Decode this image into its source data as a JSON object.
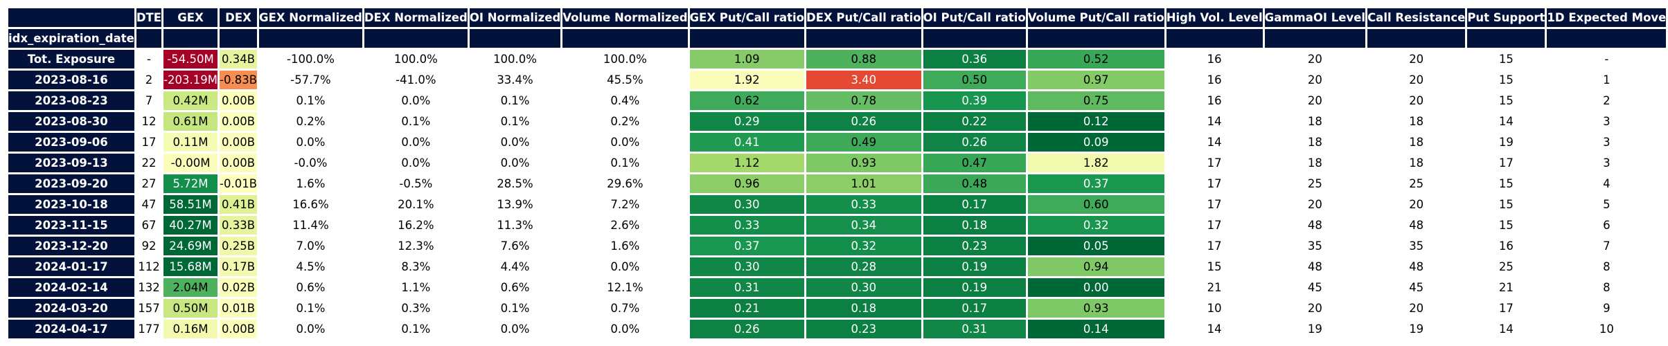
{
  "chart_data": {
    "type": "table",
    "columns": [
      "DTE",
      "GEX",
      "DEX",
      "GEX Normalized",
      "DEX Normalized",
      "OI Normalized",
      "Volume Normalized",
      "GEX Put/Call ratio",
      "DEX Put/Call ratio",
      "OI Put/Call ratio",
      "Volume Put/Call ratio",
      "High Vol. Level",
      "GammaOI Level",
      "Call Resistance",
      "Put Support",
      "1D Expected Move"
    ],
    "index_name": "idx_expiration_date",
    "rows": [
      {
        "label": "Tot. Exposure",
        "cells": [
          "-",
          "-54.50M",
          "0.34B",
          "-100.0%",
          "100.0%",
          "100.0%",
          "100.0%",
          "1.09",
          "0.88",
          "0.36",
          "0.52",
          "16",
          "20",
          "20",
          "15",
          "-"
        ],
        "bg": [
          "#ffffff",
          "#a50026",
          "#e6f59d",
          "#ffffff",
          "#ffffff",
          "#ffffff",
          "#ffffff",
          "#86cb67",
          "#4eb15d",
          "#0c7f43",
          "#39a758",
          "#ffffff",
          "#ffffff",
          "#ffffff",
          "#ffffff",
          "#ffffff"
        ]
      },
      {
        "label": "2023-08-16",
        "cells": [
          "2",
          "-203.19M",
          "-0.83B",
          "-57.7%",
          "-41.0%",
          "33.4%",
          "45.5%",
          "1.92",
          "3.40",
          "0.50",
          "0.97",
          "16",
          "20",
          "20",
          "15",
          "1"
        ],
        "bg": [
          "#ffffff",
          "#a50026",
          "#f88d52",
          "#ffffff",
          "#ffffff",
          "#ffffff",
          "#ffffff",
          "#fbfdba",
          "#e34933",
          "#3faa59",
          "#84ca66",
          "#ffffff",
          "#ffffff",
          "#ffffff",
          "#ffffff",
          "#ffffff"
        ]
      },
      {
        "label": "2023-08-23",
        "cells": [
          "7",
          "0.42M",
          "0.00B",
          "0.1%",
          "0.0%",
          "0.1%",
          "0.4%",
          "0.62",
          "0.78",
          "0.39",
          "0.75",
          "16",
          "20",
          "20",
          "15",
          "2"
        ],
        "bg": [
          "#ffffff",
          "#cbe982",
          "#fbfdba",
          "#ffffff",
          "#ffffff",
          "#ffffff",
          "#ffffff",
          "#3faa59",
          "#66bd63",
          "#18954f",
          "#5fba5f",
          "#ffffff",
          "#ffffff",
          "#ffffff",
          "#ffffff",
          "#ffffff"
        ]
      },
      {
        "label": "2023-08-30",
        "cells": [
          "12",
          "0.61M",
          "0.00B",
          "0.2%",
          "0.1%",
          "0.1%",
          "0.2%",
          "0.29",
          "0.26",
          "0.22",
          "0.12",
          "14",
          "18",
          "18",
          "14",
          "3"
        ],
        "bg": [
          "#ffffff",
          "#c6e77f",
          "#fbfdba",
          "#ffffff",
          "#ffffff",
          "#ffffff",
          "#ffffff",
          "#108647",
          "#0e8245",
          "#0c7f43",
          "#006837",
          "#ffffff",
          "#ffffff",
          "#ffffff",
          "#ffffff",
          "#ffffff"
        ]
      },
      {
        "label": "2023-09-06",
        "cells": [
          "17",
          "0.11M",
          "0.00B",
          "0.0%",
          "0.0%",
          "0.0%",
          "0.0%",
          "0.41",
          "0.49",
          "0.26",
          "0.09",
          "14",
          "18",
          "18",
          "19",
          "3"
        ],
        "bg": [
          "#ffffff",
          "#f5fbb2",
          "#fbfdba",
          "#ffffff",
          "#ffffff",
          "#ffffff",
          "#ffffff",
          "#1e9a51",
          "#3ea959",
          "#0f8446",
          "#006837",
          "#ffffff",
          "#ffffff",
          "#ffffff",
          "#ffffff",
          "#ffffff"
        ]
      },
      {
        "label": "2023-09-13",
        "cells": [
          "22",
          "-0.00M",
          "0.00B",
          "-0.0%",
          "0.0%",
          "0.0%",
          "0.1%",
          "1.12",
          "0.93",
          "0.47",
          "1.82",
          "17",
          "18",
          "18",
          "17",
          "3"
        ],
        "bg": [
          "#ffffff",
          "#fbfdba",
          "#fbfdba",
          "#ffffff",
          "#ffffff",
          "#ffffff",
          "#ffffff",
          "#a5d86a",
          "#7fc866",
          "#39a758",
          "#f1f9ac",
          "#ffffff",
          "#ffffff",
          "#ffffff",
          "#ffffff",
          "#ffffff"
        ]
      },
      {
        "label": "2023-09-20",
        "cells": [
          "27",
          "5.72M",
          "-0.01B",
          "1.6%",
          "-0.5%",
          "28.5%",
          "29.6%",
          "0.96",
          "1.01",
          "0.48",
          "0.37",
          "17",
          "25",
          "25",
          "15",
          "4"
        ],
        "bg": [
          "#ffffff",
          "#148e4b",
          "#fefebd",
          "#ffffff",
          "#ffffff",
          "#ffffff",
          "#ffffff",
          "#8ccd67",
          "#8ccd67",
          "#3ba858",
          "#1a9850",
          "#ffffff",
          "#ffffff",
          "#ffffff",
          "#ffffff",
          "#ffffff"
        ]
      },
      {
        "label": "2023-10-18",
        "cells": [
          "47",
          "58.51M",
          "0.41B",
          "16.6%",
          "20.1%",
          "13.9%",
          "7.2%",
          "0.30",
          "0.33",
          "0.17",
          "0.60",
          "17",
          "20",
          "20",
          "15",
          "5"
        ],
        "bg": [
          "#ffffff",
          "#006837",
          "#dff293",
          "#ffffff",
          "#ffffff",
          "#ffffff",
          "#ffffff",
          "#108647",
          "#148e4b",
          "#0c7f43",
          "#3faa59",
          "#ffffff",
          "#ffffff",
          "#ffffff",
          "#ffffff",
          "#ffffff"
        ]
      },
      {
        "label": "2023-11-15",
        "cells": [
          "67",
          "40.27M",
          "0.33B",
          "11.4%",
          "16.2%",
          "11.3%",
          "2.6%",
          "0.33",
          "0.34",
          "0.18",
          "0.32",
          "17",
          "48",
          "48",
          "15",
          "6"
        ],
        "bg": [
          "#ffffff",
          "#006837",
          "#e6f59d",
          "#ffffff",
          "#ffffff",
          "#ffffff",
          "#ffffff",
          "#148e4b",
          "#168f4c",
          "#0c7f43",
          "#18954f",
          "#ffffff",
          "#ffffff",
          "#ffffff",
          "#ffffff",
          "#ffffff"
        ]
      },
      {
        "label": "2023-12-20",
        "cells": [
          "92",
          "24.69M",
          "0.25B",
          "7.0%",
          "12.3%",
          "7.6%",
          "1.6%",
          "0.37",
          "0.32",
          "0.23",
          "0.05",
          "17",
          "35",
          "35",
          "16",
          "7"
        ],
        "bg": [
          "#ffffff",
          "#006837",
          "#eef8a8",
          "#ffffff",
          "#ffffff",
          "#ffffff",
          "#ffffff",
          "#199750",
          "#148e4b",
          "#0c7f43",
          "#006837",
          "#ffffff",
          "#ffffff",
          "#ffffff",
          "#ffffff",
          "#ffffff"
        ]
      },
      {
        "label": "2024-01-17",
        "cells": [
          "112",
          "15.68M",
          "0.17B",
          "4.5%",
          "8.3%",
          "4.4%",
          "0.0%",
          "0.30",
          "0.28",
          "0.19",
          "0.94",
          "15",
          "48",
          "48",
          "25",
          "8"
        ],
        "bg": [
          "#ffffff",
          "#006837",
          "#f3faaf",
          "#ffffff",
          "#ffffff",
          "#ffffff",
          "#ffffff",
          "#108647",
          "#0f8446",
          "#0c7f43",
          "#80c966",
          "#ffffff",
          "#ffffff",
          "#ffffff",
          "#ffffff",
          "#ffffff"
        ]
      },
      {
        "label": "2024-02-14",
        "cells": [
          "132",
          "2.04M",
          "0.02B",
          "0.6%",
          "1.1%",
          "0.6%",
          "12.1%",
          "0.31",
          "0.30",
          "0.19",
          "0.00",
          "21",
          "45",
          "45",
          "21",
          "8"
        ],
        "bg": [
          "#ffffff",
          "#4eb15d",
          "#fafdb8",
          "#ffffff",
          "#ffffff",
          "#ffffff",
          "#ffffff",
          "#108647",
          "#108647",
          "#0c7f43",
          "#006837",
          "#ffffff",
          "#ffffff",
          "#ffffff",
          "#ffffff",
          "#ffffff"
        ]
      },
      {
        "label": "2024-03-20",
        "cells": [
          "157",
          "0.50M",
          "0.01B",
          "0.1%",
          "0.3%",
          "0.1%",
          "0.7%",
          "0.21",
          "0.18",
          "0.17",
          "0.93",
          "10",
          "20",
          "20",
          "17",
          "9"
        ],
        "bg": [
          "#ffffff",
          "#c8e780",
          "#fbfdba",
          "#ffffff",
          "#ffffff",
          "#ffffff",
          "#ffffff",
          "#0c7f43",
          "#0c7f43",
          "#0c7f43",
          "#7fc866",
          "#ffffff",
          "#ffffff",
          "#ffffff",
          "#ffffff",
          "#ffffff"
        ]
      },
      {
        "label": "2024-04-17",
        "cells": [
          "177",
          "0.16M",
          "0.00B",
          "0.0%",
          "0.1%",
          "0.0%",
          "0.0%",
          "0.26",
          "0.23",
          "0.31",
          "0.14",
          "14",
          "19",
          "19",
          "14",
          "10"
        ],
        "bg": [
          "#ffffff",
          "#f3faaf",
          "#fbfdba",
          "#ffffff",
          "#ffffff",
          "#ffffff",
          "#ffffff",
          "#0e8245",
          "#0c7f43",
          "#108647",
          "#006837",
          "#ffffff",
          "#ffffff",
          "#ffffff",
          "#ffffff",
          "#ffffff"
        ]
      }
    ]
  }
}
